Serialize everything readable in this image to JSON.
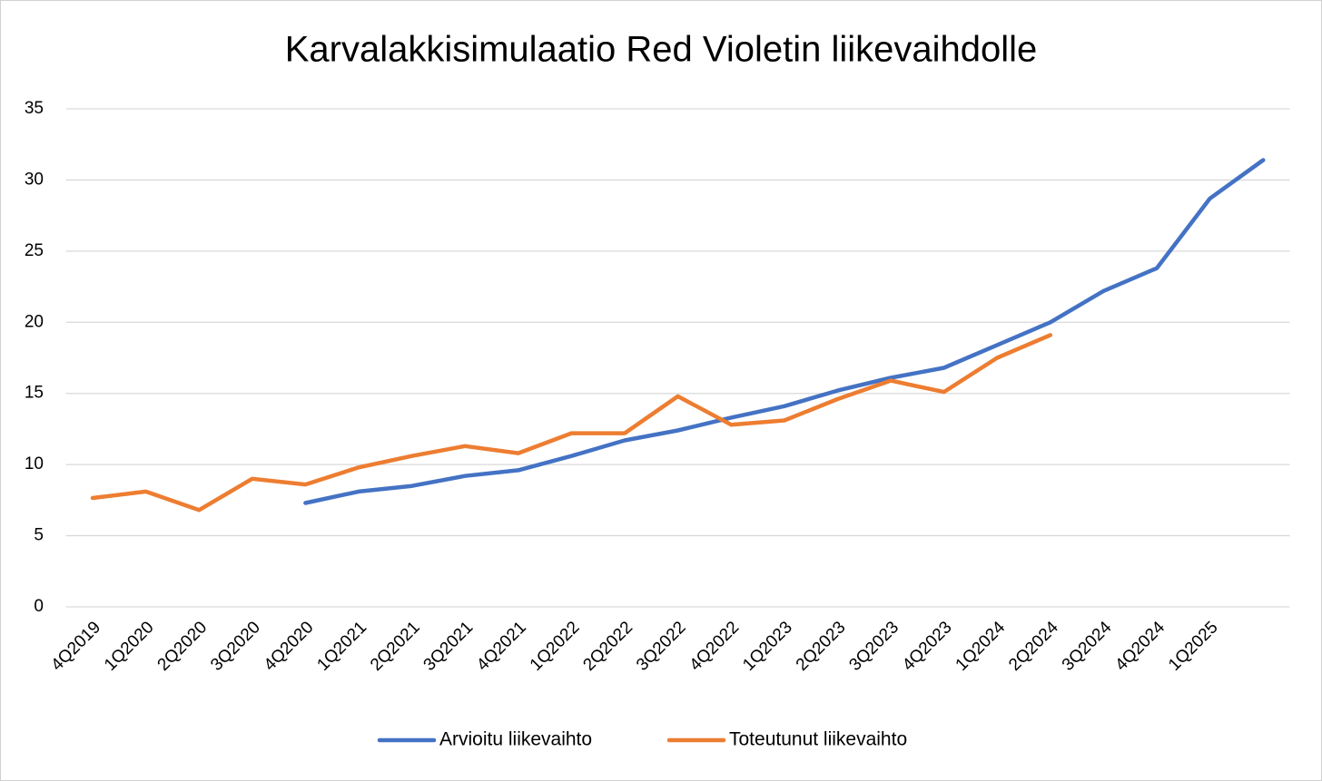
{
  "chart_data": {
    "type": "line",
    "title": "Karvalakkisimulaatio Red Violetin liikevaihdolle",
    "categories": [
      "4Q2019",
      "1Q2020",
      "2Q2020",
      "3Q2020",
      "4Q2020",
      "1Q2021",
      "2Q2021",
      "3Q2021",
      "4Q2021",
      "1Q2022",
      "2Q2022",
      "3Q2022",
      "4Q2022",
      "1Q2023",
      "2Q2023",
      "3Q2023",
      "4Q2023",
      "1Q2024",
      "2Q2024",
      "3Q2024",
      "4Q2024",
      "1Q2025",
      null
    ],
    "series": [
      {
        "name": "Arvioitu liikevaihto",
        "color": "#4472c4",
        "values": [
          null,
          null,
          null,
          null,
          7.3,
          8.1,
          8.5,
          9.2,
          9.6,
          10.6,
          11.7,
          12.4,
          13.3,
          14.1,
          15.2,
          16.1,
          16.8,
          18.4,
          20.0,
          22.2,
          23.8,
          28.7,
          31.4
        ]
      },
      {
        "name": "Toteutunut liikevaihto",
        "color": "#ed7d31",
        "values": [
          7.65,
          8.1,
          6.8,
          9.0,
          8.6,
          9.8,
          10.6,
          11.3,
          10.8,
          12.2,
          12.2,
          14.8,
          12.8,
          13.1,
          14.6,
          15.9,
          15.1,
          17.5,
          19.1,
          null,
          null,
          null,
          null
        ]
      }
    ],
    "ylim": [
      0,
      35
    ],
    "yticks": [
      0,
      5,
      10,
      15,
      20,
      25,
      30,
      35
    ],
    "grid": true,
    "legend": "bottom"
  }
}
